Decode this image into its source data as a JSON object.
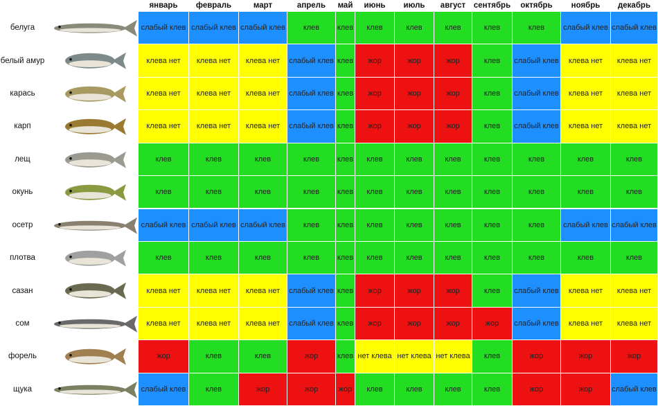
{
  "table": {
    "months": [
      "январь",
      "февраль",
      "март",
      "апрель",
      "май",
      "июнь",
      "июль",
      "август",
      "сентябрь",
      "октябрь",
      "ноябрь",
      "декабрь"
    ],
    "status_colors": {
      "клев": "#22dd22",
      "слабый клев": "#1e8fff",
      "клева нет": "#ffff00",
      "нет клева": "#ffff00",
      "жор": "#ee1111"
    },
    "rows": [
      {
        "fish": "белуга",
        "months": [
          "слабый клев",
          "слабый клев",
          "слабый клев",
          "клев",
          "клев",
          "клев",
          "клев",
          "клев",
          "клев",
          "клев",
          "слабый клев",
          "слабый клев"
        ]
      },
      {
        "fish": "белый амур",
        "months": [
          "клева нет",
          "клева нет",
          "клева нет",
          "слабый клев",
          "клев",
          "жор",
          "жор",
          "жор",
          "клев",
          "слабый клев",
          "клева нет",
          "клева нет"
        ]
      },
      {
        "fish": "карась",
        "months": [
          "клева нет",
          "клева нет",
          "клева нет",
          "слабый клев",
          "клев",
          "жор",
          "жор",
          "жор",
          "клев",
          "слабый клев",
          "клева нет",
          "клева нет"
        ]
      },
      {
        "fish": "карп",
        "months": [
          "клева нет",
          "клева нет",
          "клева нет",
          "слабый клев",
          "клев",
          "жор",
          "жор",
          "жор",
          "клев",
          "слабый клев",
          "клева нет",
          "клева нет"
        ]
      },
      {
        "fish": "лещ",
        "months": [
          "клев",
          "клев",
          "клев",
          "клев",
          "клев",
          "клев",
          "клев",
          "клев",
          "клев",
          "клев",
          "клев",
          "клев"
        ]
      },
      {
        "fish": "окунь",
        "months": [
          "клев",
          "клев",
          "клев",
          "клев",
          "клев",
          "клев",
          "клев",
          "клев",
          "клев",
          "клев",
          "клев",
          "клев"
        ]
      },
      {
        "fish": "осетр",
        "months": [
          "слабый клев",
          "слабый клев",
          "слабый клев",
          "клев",
          "клев",
          "клев",
          "клев",
          "клев",
          "клев",
          "клев",
          "слабый клев",
          "слабый клев"
        ]
      },
      {
        "fish": "плотва",
        "months": [
          "клев",
          "клев",
          "клев",
          "клев",
          "клев",
          "клев",
          "клев",
          "клев",
          "клев",
          "клев",
          "клев",
          "клев"
        ]
      },
      {
        "fish": "сазан",
        "months": [
          "клева нет",
          "клева нет",
          "клева нет",
          "слабый клев",
          "клев",
          "жор",
          "жор",
          "жор",
          "клев",
          "слабый клев",
          "клева нет",
          "клева нет"
        ]
      },
      {
        "fish": "сом",
        "months": [
          "клева нет",
          "клева нет",
          "клева нет",
          "слабый клев",
          "клев",
          "жор",
          "жор",
          "жор",
          "жор",
          "слабый клев",
          "клева нет",
          "клева нет"
        ]
      },
      {
        "fish": "форель",
        "months": [
          "жор",
          "клев",
          "клев",
          "жор",
          "клев",
          "нет клева",
          "нет клева",
          "нет клева",
          "клев",
          "жор",
          "жор",
          "жор"
        ]
      },
      {
        "fish": "щука",
        "months": [
          "слабый клев",
          "клев",
          "жор",
          "жор",
          "жор",
          "клев",
          "клев",
          "клев",
          "клев",
          "жор",
          "жор",
          "слабый клев"
        ]
      }
    ]
  }
}
